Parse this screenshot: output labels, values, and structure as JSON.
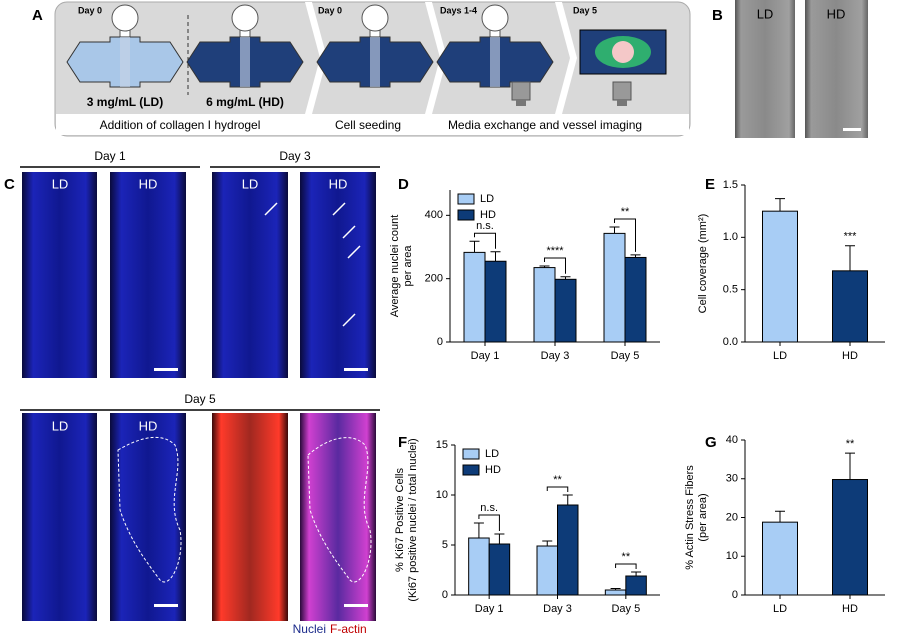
{
  "panel_labels": [
    "A",
    "B",
    "C",
    "D",
    "E",
    "F",
    "G"
  ],
  "schematic": {
    "days": [
      "Day 0",
      "Day 0",
      "Days 1-4",
      "Day 5"
    ],
    "conditions": [
      "3 mg/mL (LD)",
      "6 mg/mL (HD)"
    ],
    "steps": [
      "Addition of collagen I hydrogel",
      "Cell seeding",
      "Media exchange and vessel imaging"
    ]
  },
  "micrographs": {
    "conditions": [
      "LD",
      "HD"
    ],
    "days": [
      "Day 1",
      "Day 3",
      "Day 5"
    ],
    "stains": [
      "Nuclei",
      "F-actin"
    ]
  },
  "chart_data": [
    {
      "type": "bar",
      "ylabel": [
        "Average nuclei count",
        "per area"
      ],
      "categories": [
        "Day 1",
        "Day 3",
        "Day 5"
      ],
      "series": [
        {
          "name": "LD",
          "color": "#a8cdf5",
          "values": [
            283,
            235,
            343
          ],
          "errors": [
            35,
            5,
            20
          ]
        },
        {
          "name": "HD",
          "color": "#0d3b78",
          "values": [
            255,
            198,
            267
          ],
          "errors": [
            30,
            8,
            8
          ]
        }
      ],
      "significance": [
        "n.s.",
        "****",
        "**"
      ],
      "ylim": [
        0,
        480
      ],
      "yticks": [
        0,
        200,
        400
      ],
      "legend": "upper left"
    },
    {
      "type": "bar",
      "ylabel": [
        "Cell coverage (mm²)"
      ],
      "categories": [
        "LD",
        "HD"
      ],
      "series": [
        {
          "color": [
            "#a8cdf5",
            "#0d3b78"
          ],
          "values": [
            1.25,
            0.68
          ],
          "errors": [
            0.12,
            0.24
          ]
        }
      ],
      "significance": [
        null,
        "***"
      ],
      "ylim": [
        0,
        1.5
      ],
      "yticks": [
        {
          "value": 0,
          "label": "0.0"
        },
        0.5,
        {
          "value": 1,
          "label": "1.0"
        },
        1.5
      ]
    },
    {
      "type": "bar",
      "ylabel": [
        "% Ki67 Positive Cells",
        "(Ki67 positive nuclei / total nuclei)"
      ],
      "categories": [
        "Day 1",
        "Day 3",
        "Day 5"
      ],
      "series": [
        {
          "name": "LD",
          "color": "#a8cdf5",
          "values": [
            5.7,
            4.9,
            0.5
          ],
          "errors": [
            1.5,
            0.5,
            0.15
          ]
        },
        {
          "name": "HD",
          "color": "#0d3b78",
          "values": [
            5.1,
            9.0,
            1.9
          ],
          "errors": [
            1.0,
            1.0,
            0.4
          ]
        }
      ],
      "significance": [
        "n.s.",
        "**",
        "**"
      ],
      "ylim": [
        0,
        15
      ],
      "yticks": [
        0,
        5,
        10,
        15
      ],
      "legend": "upper left"
    },
    {
      "type": "bar",
      "ylabel": [
        "% Actin Stress Fibers",
        "(per area)"
      ],
      "categories": [
        "LD",
        "HD"
      ],
      "series": [
        {
          "color": [
            "#a8cdf5",
            "#0d3b78"
          ],
          "values": [
            18.8,
            29.8
          ],
          "errors": [
            2.8,
            6.8
          ]
        }
      ],
      "significance": [
        null,
        "**"
      ],
      "ylim": [
        0,
        40
      ],
      "yticks": [
        0,
        10,
        20,
        30,
        40
      ]
    }
  ]
}
